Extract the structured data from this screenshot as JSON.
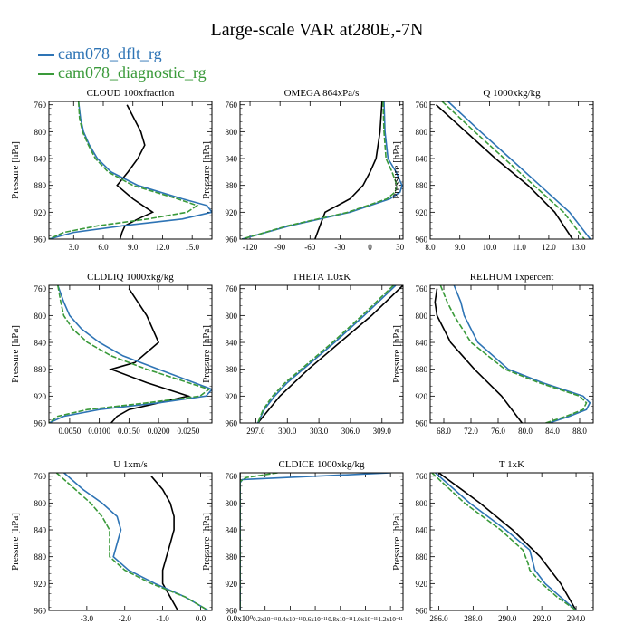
{
  "title": "Large-scale VAR at280E,-7N",
  "legend": [
    {
      "label": "cam078_dflt_rg",
      "color": "#2e74b5"
    },
    {
      "label": "cam078_diagnostic_rg",
      "color": "#3a9a3a"
    }
  ],
  "colors": {
    "obs": "#000000",
    "dflt": "#2e74b5",
    "diag": "#3a9a3a"
  },
  "chart_data": [
    {
      "type": "line",
      "title": "CLOUD  100xfraction",
      "ylabel": "Pressure [hPa]",
      "xlim": [
        0.5,
        17
      ],
      "ylim": [
        960,
        755
      ],
      "xticks": [
        3,
        6,
        9,
        12,
        15
      ],
      "xtick_labels": [
        "3.0",
        "6.0",
        "9.0",
        "12.0",
        "15.0"
      ],
      "yticks": [
        760,
        800,
        840,
        880,
        920,
        960
      ],
      "ytick_labels": [
        "760",
        "800",
        "840",
        "880",
        "920",
        "960"
      ],
      "series": [
        {
          "y": [
            760,
            800,
            820,
            840,
            860,
            880,
            900,
            920,
            930,
            940,
            950,
            960
          ],
          "x": [
            8.4,
            9.8,
            10.2,
            9.5,
            8.5,
            7.4,
            9.0,
            11.0,
            9.5,
            8.2,
            7.9,
            7.7
          ]
        },
        {
          "y": [
            755,
            780,
            800,
            820,
            840,
            860,
            880,
            900,
            910,
            920,
            930,
            940,
            950,
            960
          ],
          "x": [
            3.5,
            3.7,
            4.0,
            4.6,
            5.4,
            6.8,
            9.5,
            14.0,
            16.5,
            17.0,
            14.0,
            8.0,
            3.0,
            0.5
          ]
        },
        {
          "y": [
            755,
            780,
            800,
            820,
            840,
            860,
            880,
            900,
            910,
            920,
            930,
            940,
            950,
            960
          ],
          "x": [
            3.5,
            3.6,
            3.9,
            4.5,
            5.2,
            6.5,
            9.0,
            13.5,
            15.5,
            14.5,
            10.5,
            5.5,
            2.0,
            0.5
          ]
        }
      ]
    },
    {
      "type": "line",
      "title": "OMEGA  864xPa/s",
      "ylabel": "Pressure [hPa]",
      "xlim": [
        -130,
        33
      ],
      "ylim": [
        960,
        755
      ],
      "xticks": [
        -120,
        -90,
        -60,
        -30,
        0,
        30
      ],
      "xtick_labels": [
        "-120",
        "-90",
        "-60",
        "-30",
        "0",
        "30"
      ],
      "yticks": [
        760,
        800,
        840,
        880,
        920,
        960
      ],
      "ytick_labels": [
        "760",
        "800",
        "840",
        "880",
        "920",
        "960"
      ],
      "series": [
        {
          "y": [
            755,
            800,
            840,
            860,
            880,
            900,
            920,
            940,
            960
          ],
          "x": [
            12,
            10,
            6,
            0,
            -7,
            -20,
            -45,
            -50,
            -55
          ]
        },
        {
          "y": [
            755,
            800,
            840,
            860,
            880,
            890,
            900,
            920,
            940,
            960
          ],
          "x": [
            14,
            15,
            18,
            26,
            32,
            30,
            20,
            -20,
            -80,
            -128
          ]
        },
        {
          "y": [
            755,
            800,
            840,
            860,
            880,
            890,
            900,
            920,
            940,
            960
          ],
          "x": [
            13,
            14,
            16,
            22,
            27,
            25,
            17,
            -22,
            -82,
            -128
          ]
        }
      ]
    },
    {
      "type": "line",
      "title": "Q  1000xkg/kg",
      "ylabel": "Pressure [hPa]",
      "xlim": [
        8.0,
        13.5
      ],
      "ylim": [
        960,
        755
      ],
      "xticks": [
        8,
        9,
        10,
        11,
        12,
        13
      ],
      "xtick_labels": [
        "8.0",
        "9.0",
        "10.0",
        "11.0",
        "12.0",
        "13.0"
      ],
      "yticks": [
        760,
        800,
        840,
        880,
        920,
        960
      ],
      "ytick_labels": [
        "760",
        "800",
        "840",
        "880",
        "920",
        "960"
      ],
      "series": [
        {
          "y": [
            760,
            800,
            840,
            880,
            920,
            960
          ],
          "x": [
            8.2,
            9.2,
            10.2,
            11.3,
            12.2,
            12.8
          ]
        },
        {
          "y": [
            755,
            800,
            840,
            880,
            920,
            960
          ],
          "x": [
            8.6,
            9.7,
            10.7,
            11.7,
            12.7,
            13.4
          ]
        },
        {
          "y": [
            755,
            800,
            840,
            880,
            920,
            960
          ],
          "x": [
            8.4,
            9.5,
            10.5,
            11.5,
            12.5,
            13.2
          ]
        }
      ]
    },
    {
      "type": "line",
      "title": "CLDLIQ  1000xkg/kg",
      "ylabel": "Pressure [hPa]",
      "xlim": [
        0.0015,
        0.029
      ],
      "ylim": [
        960,
        755
      ],
      "xticks": [
        0.005,
        0.01,
        0.015,
        0.02,
        0.025
      ],
      "xtick_labels": [
        "0.0050",
        "0.0100",
        "0.0150",
        "0.0200",
        "0.0250"
      ],
      "yticks": [
        760,
        800,
        840,
        880,
        920,
        960
      ],
      "ytick_labels": [
        "760",
        "800",
        "840",
        "880",
        "920",
        "960"
      ],
      "series": [
        {
          "y": [
            760,
            800,
            840,
            870,
            880,
            900,
            920,
            930,
            940,
            950,
            960
          ],
          "x": [
            0.015,
            0.018,
            0.02,
            0.016,
            0.012,
            0.018,
            0.025,
            0.02,
            0.015,
            0.013,
            0.012
          ]
        },
        {
          "y": [
            755,
            780,
            800,
            820,
            840,
            860,
            880,
            900,
            910,
            920,
            930,
            940,
            950,
            960
          ],
          "x": [
            0.003,
            0.004,
            0.005,
            0.007,
            0.01,
            0.014,
            0.02,
            0.026,
            0.029,
            0.028,
            0.02,
            0.01,
            0.004,
            0.0015
          ]
        },
        {
          "y": [
            755,
            780,
            800,
            820,
            840,
            860,
            880,
            900,
            910,
            920,
            930,
            940,
            950,
            960
          ],
          "x": [
            0.003,
            0.0035,
            0.004,
            0.0055,
            0.008,
            0.012,
            0.018,
            0.025,
            0.0285,
            0.027,
            0.018,
            0.008,
            0.003,
            0.0015
          ]
        }
      ]
    },
    {
      "type": "line",
      "title": "THETA  1.0xK",
      "ylabel": "Pressure [hPa]",
      "xlim": [
        295.5,
        311
      ],
      "ylim": [
        960,
        755
      ],
      "xticks": [
        297,
        300,
        303,
        306,
        309
      ],
      "xtick_labels": [
        "297.0",
        "300.0",
        "303.0",
        "306.0",
        "309.0"
      ],
      "yticks": [
        760,
        800,
        840,
        880,
        920,
        960
      ],
      "ytick_labels": [
        "760",
        "800",
        "840",
        "880",
        "920",
        "960"
      ],
      "series": [
        {
          "y": [
            755,
            800,
            840,
            880,
            920,
            960
          ],
          "x": [
            311.0,
            308.0,
            305.0,
            302.0,
            299.3,
            297.2
          ]
        },
        {
          "y": [
            755,
            800,
            840,
            880,
            900,
            920,
            940,
            960
          ],
          "x": [
            310.3,
            307.3,
            304.5,
            301.5,
            300.0,
            298.8,
            297.8,
            297.2
          ]
        },
        {
          "y": [
            755,
            800,
            840,
            880,
            900,
            920,
            940,
            960
          ],
          "x": [
            310.1,
            307.1,
            304.3,
            301.3,
            299.8,
            298.6,
            297.7,
            297.2
          ]
        }
      ]
    },
    {
      "type": "line",
      "title": "RELHUM  1xpercent",
      "ylabel": "Pressure [hPa]",
      "xlim": [
        66,
        90
      ],
      "ylim": [
        960,
        755
      ],
      "xticks": [
        68,
        72,
        76,
        80,
        84,
        88
      ],
      "xtick_labels": [
        "68.0",
        "72.0",
        "76.0",
        "80.0",
        "84.0",
        "88.0"
      ],
      "yticks": [
        760,
        800,
        840,
        880,
        920,
        960
      ],
      "ytick_labels": [
        "760",
        "800",
        "840",
        "880",
        "920",
        "960"
      ],
      "series": [
        {
          "y": [
            760,
            780,
            800,
            840,
            880,
            920,
            960
          ],
          "x": [
            67.0,
            66.7,
            67.0,
            69.0,
            72.5,
            76.5,
            79.5
          ]
        },
        {
          "y": [
            755,
            780,
            800,
            840,
            880,
            900,
            920,
            930,
            940,
            950,
            960
          ],
          "x": [
            69.5,
            70.5,
            71.0,
            73.0,
            77.5,
            82.5,
            88.5,
            89.5,
            89.0,
            86.5,
            83.5
          ]
        },
        {
          "y": [
            755,
            780,
            800,
            840,
            880,
            900,
            920,
            930,
            940,
            950,
            960
          ],
          "x": [
            67.5,
            68.5,
            69.5,
            72.0,
            77.0,
            82.0,
            88.0,
            89.0,
            88.5,
            86.0,
            83.0
          ]
        }
      ]
    },
    {
      "type": "line",
      "title": "U  1xm/s",
      "ylabel": "Pressure [hPa]",
      "xlim": [
        -4.0,
        0.3
      ],
      "ylim": [
        960,
        755
      ],
      "xticks": [
        -3,
        -2,
        -1,
        0
      ],
      "xtick_labels": [
        "-3.0",
        "-2.0",
        "-1.0",
        "0.0"
      ],
      "yticks": [
        760,
        800,
        840,
        880,
        920,
        960
      ],
      "ytick_labels": [
        "760",
        "800",
        "840",
        "880",
        "920",
        "960"
      ],
      "series": [
        {
          "y": [
            760,
            780,
            800,
            820,
            840,
            860,
            880,
            900,
            920,
            940,
            960
          ],
          "x": [
            -1.3,
            -1.0,
            -0.8,
            -0.7,
            -0.7,
            -0.8,
            -0.9,
            -1.0,
            -1.0,
            -0.8,
            -0.6
          ]
        },
        {
          "y": [
            755,
            780,
            800,
            820,
            840,
            860,
            880,
            900,
            920,
            940,
            960
          ],
          "x": [
            -3.6,
            -3.1,
            -2.6,
            -2.2,
            -2.1,
            -2.2,
            -2.3,
            -1.9,
            -1.2,
            -0.4,
            0.2
          ]
        },
        {
          "y": [
            755,
            780,
            800,
            820,
            840,
            860,
            880,
            900,
            920,
            940,
            960
          ],
          "x": [
            -3.8,
            -3.3,
            -2.9,
            -2.6,
            -2.4,
            -2.4,
            -2.4,
            -2.0,
            -1.3,
            -0.4,
            0.2
          ]
        }
      ]
    },
    {
      "type": "line",
      "title": "CLDICE  1000xkg/kg",
      "ylabel": "Pressure [hPa]",
      "xlim": [
        0,
        1.3e-11
      ],
      "ylim": [
        960,
        755
      ],
      "xticks": [
        0,
        2e-12,
        4e-12,
        6e-12,
        8e-12,
        1e-11,
        1.2e-11
      ],
      "xtick_labels": [
        "0.0x10⁰",
        "0.2x10⁻¹¹",
        "0.4x10⁻¹¹",
        "0.6x10⁻¹¹",
        "0.8x10⁻¹¹",
        "1.0x10⁻¹¹",
        "1.2x10⁻¹¹"
      ],
      "yticks": [
        760,
        800,
        840,
        880,
        920,
        960
      ],
      "ytick_labels": [
        "760",
        "800",
        "840",
        "880",
        "920",
        "960"
      ],
      "series": [
        {
          "y": [
            755,
            960
          ],
          "x": [
            0,
            0
          ]
        },
        {
          "y": [
            755,
            765,
            770,
            960
          ],
          "x": [
            1.2e-11,
            2e-13,
            0,
            0
          ]
        },
        {
          "y": [
            755,
            762,
            768,
            960
          ],
          "x": [
            3e-12,
            5e-13,
            0,
            0
          ]
        }
      ]
    },
    {
      "type": "line",
      "title": "T  1xK",
      "ylabel": "Pressure [hPa]",
      "xlim": [
        285.5,
        295
      ],
      "ylim": [
        960,
        755
      ],
      "xticks": [
        286,
        288,
        290,
        292,
        294
      ],
      "xtick_labels": [
        "286.0",
        "288.0",
        "290.0",
        "292.0",
        "294.0"
      ],
      "yticks": [
        760,
        800,
        840,
        880,
        920,
        960
      ],
      "ytick_labels": [
        "760",
        "800",
        "840",
        "880",
        "920",
        "960"
      ],
      "series": [
        {
          "y": [
            755,
            800,
            840,
            880,
            920,
            960
          ],
          "x": [
            286.0,
            288.4,
            290.3,
            291.9,
            293.1,
            294.0
          ]
        },
        {
          "y": [
            755,
            800,
            840,
            870,
            890,
            900,
            920,
            940,
            960
          ],
          "x": [
            285.8,
            287.8,
            289.9,
            291.3,
            291.5,
            291.6,
            292.2,
            293.1,
            294.0
          ]
        },
        {
          "y": [
            755,
            800,
            840,
            870,
            890,
            900,
            920,
            940,
            960
          ],
          "x": [
            285.6,
            287.5,
            289.6,
            290.9,
            291.2,
            291.3,
            292.0,
            292.9,
            294.0
          ]
        }
      ]
    }
  ]
}
